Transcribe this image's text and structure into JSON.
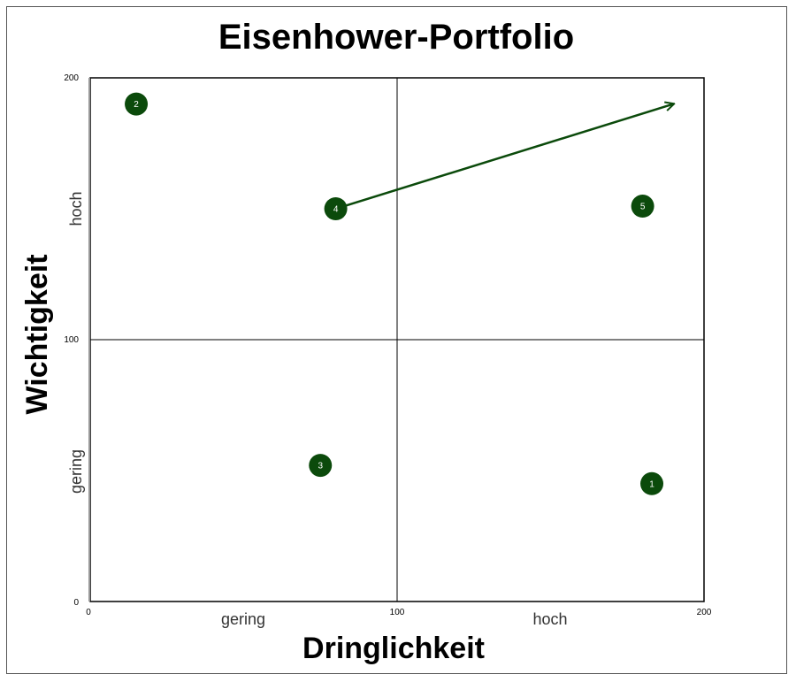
{
  "chart_data": {
    "type": "scatter",
    "title": "Eisenhower-Portfolio",
    "xlabel": "Dringlichkeit",
    "ylabel": "Wichtigkeit",
    "xlim": [
      0,
      200
    ],
    "ylim": [
      0,
      200
    ],
    "x_ticks": [
      "0",
      "100",
      "200"
    ],
    "y_ticks": [
      "0",
      "100",
      "200"
    ],
    "x_bands": [
      "gering",
      "hoch"
    ],
    "y_bands": [
      "gering",
      "hoch"
    ],
    "quadrant_divider": {
      "x": 100,
      "y": 100
    },
    "point_color": "#0b4a0b",
    "points": [
      {
        "label": "1",
        "x": 183,
        "y": 45
      },
      {
        "label": "2",
        "x": 15,
        "y": 190
      },
      {
        "label": "3",
        "x": 75,
        "y": 52
      },
      {
        "label": "4",
        "x": 80,
        "y": 150
      },
      {
        "label": "5",
        "x": 180,
        "y": 151
      }
    ],
    "arrows": [
      {
        "from": {
          "x": 80,
          "y": 150
        },
        "to": {
          "x": 190,
          "y": 190
        }
      }
    ]
  }
}
